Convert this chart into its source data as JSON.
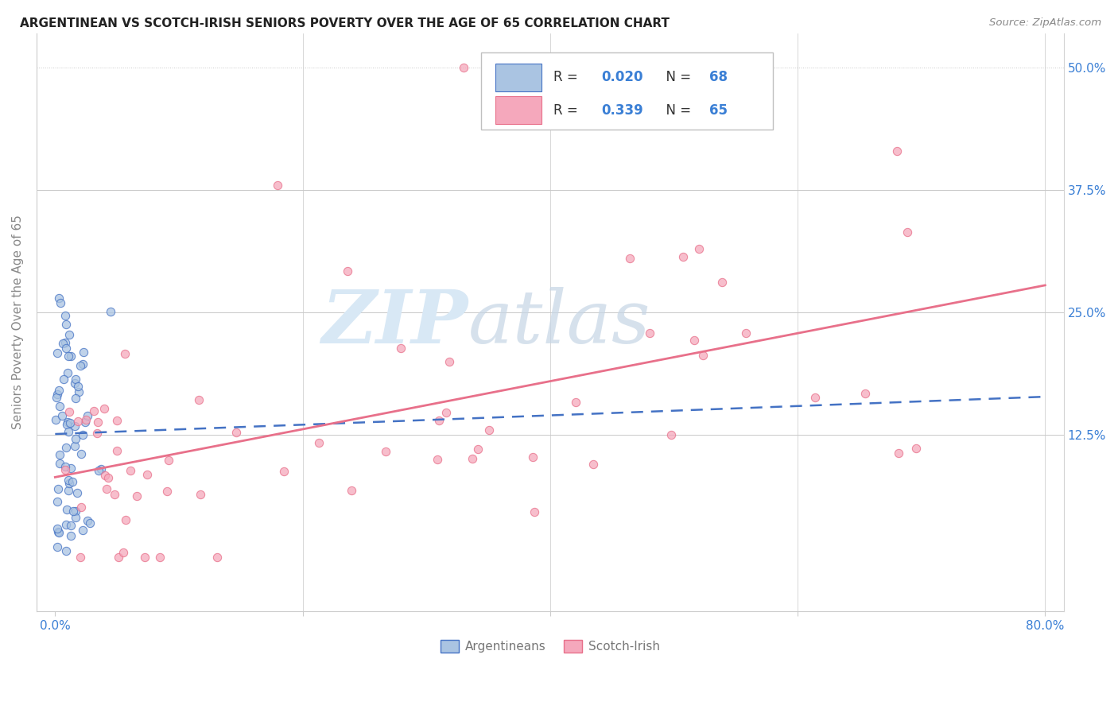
{
  "title": "ARGENTINEAN VS SCOTCH-IRISH SENIORS POVERTY OVER THE AGE OF 65 CORRELATION CHART",
  "source": "Source: ZipAtlas.com",
  "ylabel": "Seniors Poverty Over the Age of 65",
  "color_argentinean": "#aac4e2",
  "color_scotchirish": "#f5a8bc",
  "color_line_argentinean": "#4472c4",
  "color_line_scotchirish": "#e8708a",
  "legend_label1": "Argentineans",
  "legend_label2": "Scotch-Irish",
  "arg_seed": 12,
  "si_seed": 7
}
